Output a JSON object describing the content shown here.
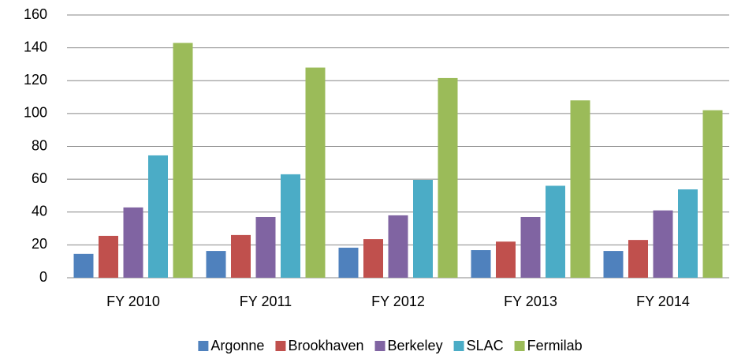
{
  "chart_data": {
    "type": "bar",
    "categories": [
      "FY 2010",
      "FY 2011",
      "FY 2012",
      "FY 2013",
      "FY 2014"
    ],
    "series": [
      {
        "name": "Argonne",
        "color": "#4f81bd",
        "values": [
          14.5,
          16.3,
          18.3,
          16.8,
          16.3
        ]
      },
      {
        "name": "Brookhaven",
        "color": "#c0504d",
        "values": [
          25.5,
          26,
          23.5,
          22,
          23
        ]
      },
      {
        "name": "Berkeley",
        "color": "#8064a2",
        "values": [
          42.8,
          37,
          38,
          37,
          41
        ]
      },
      {
        "name": "SLAC",
        "color": "#4bacc6",
        "values": [
          74.5,
          63,
          59.6,
          56,
          53.8
        ]
      },
      {
        "name": "Fermilab",
        "color": "#9bbb59",
        "values": [
          143,
          128,
          121.6,
          108,
          102
        ]
      }
    ],
    "ylim": [
      0,
      160
    ],
    "yticks": [
      0,
      20,
      40,
      60,
      80,
      100,
      120,
      140,
      160
    ],
    "grid": true,
    "legend": "bottom"
  }
}
